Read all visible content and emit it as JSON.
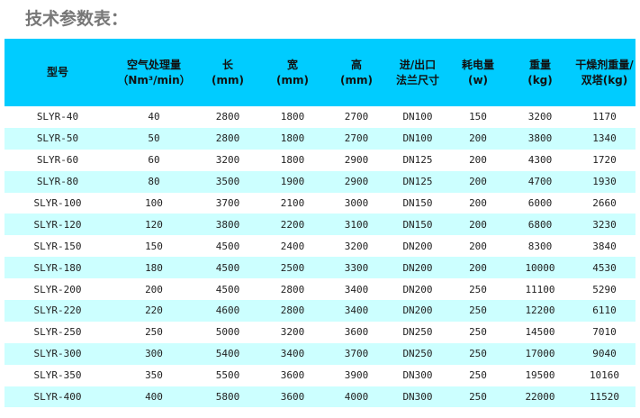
{
  "title": "技术参数表：",
  "headers": [
    {
      "l1": "型号",
      "l2": ""
    },
    {
      "l1": "空气处理量",
      "l2": "（Nm³/min）"
    },
    {
      "l1": "长",
      "l2": "(mm)"
    },
    {
      "l1": "宽",
      "l2": "(mm)"
    },
    {
      "l1": "高",
      "l2": "(mm)"
    },
    {
      "l1": "进/出口",
      "l2": "法兰尺寸"
    },
    {
      "l1": "耗电量",
      "l2": "(w)"
    },
    {
      "l1": "重量",
      "l2": "(kg)"
    },
    {
      "l1": "干燥剂重量/",
      "l2": "双塔(kg)"
    }
  ],
  "colors": {
    "header_bg": "#00ccff",
    "alt_row_bg": "#ccffff"
  },
  "rows": [
    [
      "SLYR-40",
      "40",
      "2800",
      "1800",
      "2700",
      "DN100",
      "150",
      "3200",
      "1170"
    ],
    [
      "SLYR-50",
      "50",
      "2800",
      "1800",
      "2700",
      "DN100",
      "200",
      "3800",
      "1340"
    ],
    [
      "SLYR-60",
      "60",
      "3200",
      "1800",
      "2900",
      "DN125",
      "200",
      "4300",
      "1720"
    ],
    [
      "SLYR-80",
      "80",
      "3500",
      "1900",
      "2900",
      "DN125",
      "200",
      "4700",
      "1930"
    ],
    [
      "SLYR-100",
      "100",
      "3700",
      "2100",
      "3000",
      "DN150",
      "200",
      "6000",
      "2660"
    ],
    [
      "SLYR-120",
      "120",
      "3800",
      "2200",
      "3100",
      "DN150",
      "200",
      "6800",
      "3230"
    ],
    [
      "SLYR-150",
      "150",
      "4500",
      "2400",
      "3200",
      "DN200",
      "200",
      "8300",
      "3840"
    ],
    [
      "SLYR-180",
      "180",
      "4500",
      "2500",
      "3300",
      "DN200",
      "200",
      "10000",
      "4530"
    ],
    [
      "SLYR-200",
      "200",
      "4500",
      "2800",
      "3400",
      "DN200",
      "250",
      "11100",
      "5290"
    ],
    [
      "SLYR-220",
      "220",
      "4600",
      "2800",
      "3400",
      "DN200",
      "250",
      "12200",
      "6110"
    ],
    [
      "SLYR-250",
      "250",
      "5000",
      "3200",
      "3600",
      "DN250",
      "250",
      "14500",
      "7010"
    ],
    [
      "SLYR-300",
      "300",
      "5400",
      "3400",
      "3700",
      "DN250",
      "250",
      "17000",
      "9040"
    ],
    [
      "SLYR-350",
      "350",
      "5500",
      "3600",
      "3900",
      "DN300",
      "250",
      "19500",
      "10160"
    ],
    [
      "SLYR-400",
      "400",
      "5800",
      "3600",
      "4000",
      "DN300",
      "250",
      "22000",
      "11520"
    ]
  ]
}
